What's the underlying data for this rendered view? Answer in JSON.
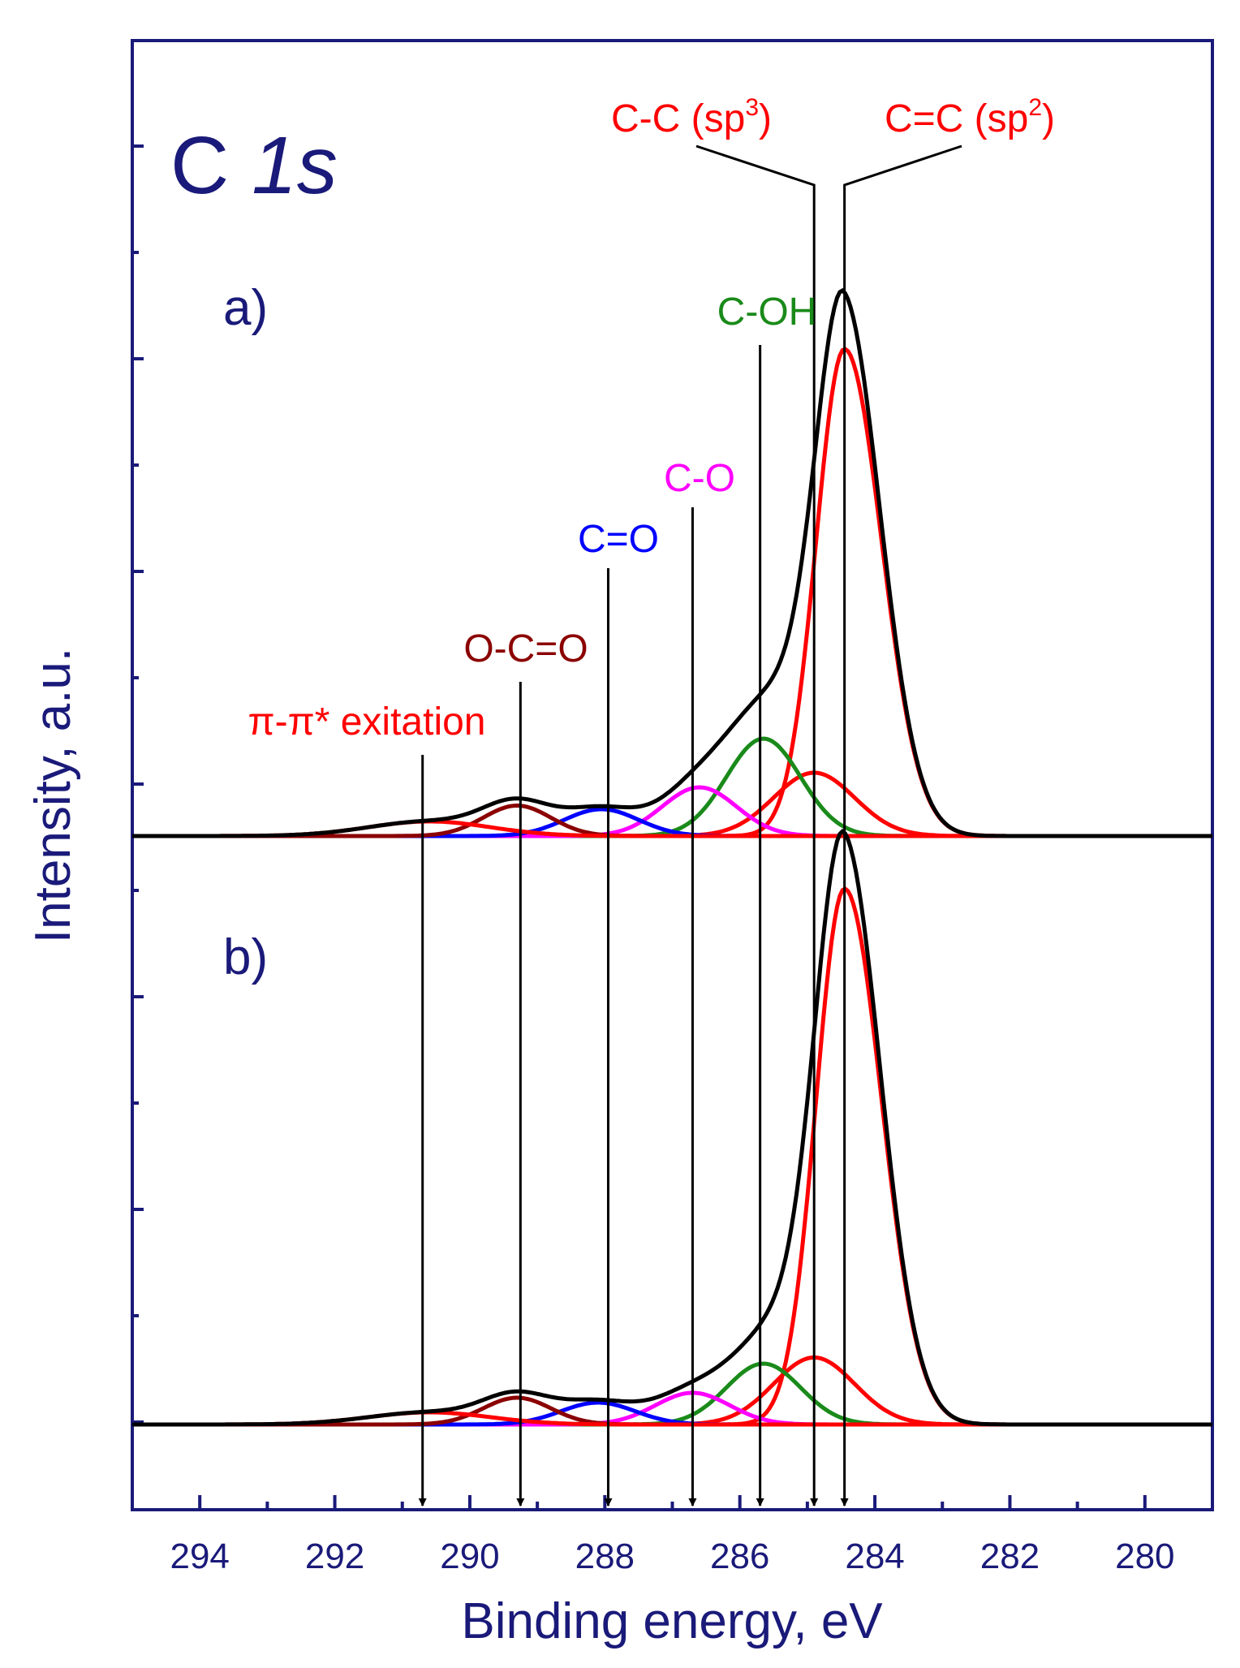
{
  "chart_data": {
    "type": "line",
    "title": "C",
    "title_italic": "1s",
    "xlabel": "Binding energy, eV",
    "ylabel": "Intensity, a.u.",
    "xlim": [
      295,
      279
    ],
    "x_reversed": true,
    "x_ticks": [
      "294",
      "292",
      "290",
      "288",
      "286",
      "284",
      "282",
      "280"
    ],
    "grid": false,
    "legend": "none",
    "colors": {
      "axis": "#1a1a7a",
      "total": "#000000",
      "sp2": "#ff0000",
      "sp3": "#ff0000",
      "c_oh": "#1a8a1a",
      "c_o": "#ff00ff",
      "c_eq_o": "#0000ff",
      "o_c_eq_o": "#8b0000",
      "pi_pi": "#ff0000"
    },
    "panels": [
      {
        "label": "a)",
        "components": [
          {
            "key": "sp2",
            "center": 284.45,
            "height": 4.0,
            "sigma_left": 0.42,
            "sigma_right": 0.55
          },
          {
            "key": "sp3",
            "center": 284.9,
            "height": 0.52,
            "sigma_left": 0.6,
            "sigma_right": 0.6
          },
          {
            "key": "c_oh",
            "center": 285.65,
            "height": 0.8,
            "sigma_left": 0.55,
            "sigma_right": 0.55
          },
          {
            "key": "c_o",
            "center": 286.6,
            "height": 0.4,
            "sigma_left": 0.55,
            "sigma_right": 0.55
          },
          {
            "key": "c_eq_o",
            "center": 288.05,
            "height": 0.22,
            "sigma_left": 0.55,
            "sigma_right": 0.55
          },
          {
            "key": "o_c_eq_o",
            "center": 289.3,
            "height": 0.25,
            "sigma_left": 0.5,
            "sigma_right": 0.5
          },
          {
            "key": "pi_pi",
            "center": 290.6,
            "height": 0.12,
            "sigma_left": 0.9,
            "sigma_right": 0.9
          }
        ]
      },
      {
        "label": "b)",
        "components": [
          {
            "key": "sp2",
            "center": 284.45,
            "height": 4.4,
            "sigma_left": 0.42,
            "sigma_right": 0.55
          },
          {
            "key": "sp3",
            "center": 284.9,
            "height": 0.55,
            "sigma_left": 0.6,
            "sigma_right": 0.6
          },
          {
            "key": "c_oh",
            "center": 285.65,
            "height": 0.5,
            "sigma_left": 0.55,
            "sigma_right": 0.55
          },
          {
            "key": "c_o",
            "center": 286.7,
            "height": 0.26,
            "sigma_left": 0.55,
            "sigma_right": 0.55
          },
          {
            "key": "c_eq_o",
            "center": 288.1,
            "height": 0.18,
            "sigma_left": 0.55,
            "sigma_right": 0.55
          },
          {
            "key": "o_c_eq_o",
            "center": 289.3,
            "height": 0.22,
            "sigma_left": 0.5,
            "sigma_right": 0.5
          },
          {
            "key": "pi_pi",
            "center": 290.6,
            "height": 0.1,
            "sigma_left": 0.9,
            "sigma_right": 0.9
          }
        ]
      }
    ],
    "annotations": [
      {
        "key": "pi_pi",
        "text": "π-π* exitation",
        "x": 290.7
      },
      {
        "key": "o_c_eq_o",
        "text": "O-C=O",
        "x": 289.25
      },
      {
        "key": "c_eq_o",
        "text": "C=O",
        "x": 287.95
      },
      {
        "key": "c_o",
        "text": "C-O",
        "x": 286.7
      },
      {
        "key": "c_oh",
        "text": "C-OH",
        "x": 285.7
      },
      {
        "key": "sp3",
        "text": "C-C (sp",
        "sup": "3",
        "close": ")",
        "x": 284.9
      },
      {
        "key": "sp2",
        "text": "C=C (sp",
        "sup": "2",
        "close": ")",
        "x": 284.45
      }
    ]
  }
}
